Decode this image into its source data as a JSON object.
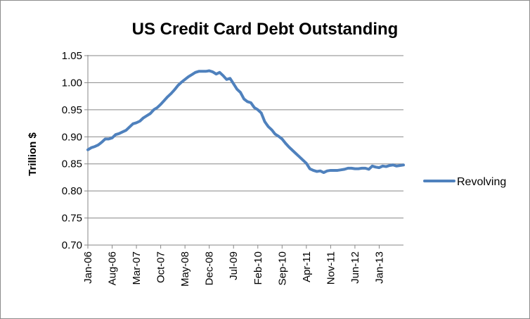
{
  "chart_data": {
    "type": "line",
    "title": "US Credit Card Debt Outstanding",
    "xlabel": "",
    "ylabel": "Trillion $",
    "ylim": [
      0.7,
      1.05
    ],
    "yticks": [
      "0.70",
      "0.75",
      "0.80",
      "0.85",
      "0.90",
      "0.95",
      "1.00",
      "1.05"
    ],
    "xtick_labels": [
      "Jan-06",
      "Aug-06",
      "Mar-07",
      "Oct-07",
      "May-08",
      "Dec-08",
      "Jul-09",
      "Feb-10",
      "Sep-10",
      "Apr-11",
      "Nov-11",
      "Jun-12",
      "Jan-13"
    ],
    "grid": "horizontal",
    "legend_position": "right",
    "line_color": "#4f81bd",
    "x_start": "Jan-06",
    "x_end": "Mar-13",
    "series": [
      {
        "name": "Revolving",
        "values": [
          0.876,
          0.88,
          0.882,
          0.885,
          0.89,
          0.896,
          0.896,
          0.898,
          0.904,
          0.906,
          0.909,
          0.912,
          0.918,
          0.924,
          0.926,
          0.929,
          0.935,
          0.939,
          0.943,
          0.95,
          0.954,
          0.96,
          0.967,
          0.974,
          0.98,
          0.987,
          0.995,
          1.001,
          1.006,
          1.011,
          1.015,
          1.019,
          1.021,
          1.021,
          1.021,
          1.022,
          1.02,
          1.016,
          1.019,
          1.013,
          1.006,
          1.008,
          0.998,
          0.988,
          0.982,
          0.97,
          0.965,
          0.963,
          0.954,
          0.95,
          0.944,
          0.928,
          0.919,
          0.913,
          0.905,
          0.901,
          0.896,
          0.888,
          0.881,
          0.875,
          0.869,
          0.863,
          0.857,
          0.851,
          0.841,
          0.838,
          0.836,
          0.837,
          0.834,
          0.837,
          0.838,
          0.838,
          0.838,
          0.839,
          0.84,
          0.842,
          0.842,
          0.841,
          0.841,
          0.842,
          0.842,
          0.84,
          0.846,
          0.844,
          0.843,
          0.846,
          0.845,
          0.847,
          0.848,
          0.846,
          0.847,
          0.848
        ]
      }
    ]
  }
}
